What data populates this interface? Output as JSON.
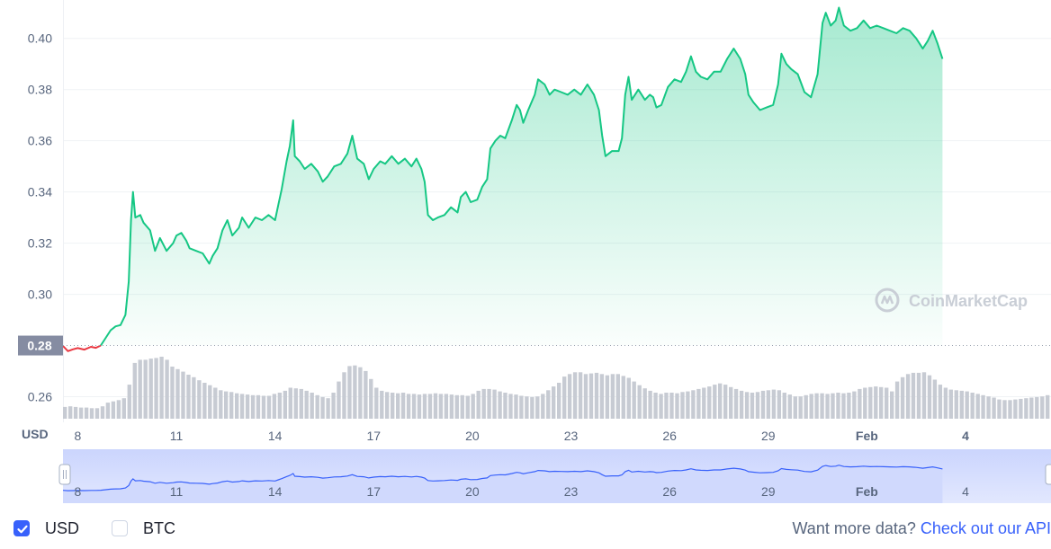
{
  "chart_data": {
    "type": "area",
    "currency_unit": "USD",
    "yticks": [
      "0.40",
      "0.38",
      "0.36",
      "0.34",
      "0.32",
      "0.30",
      "0.26"
    ],
    "ylim": [
      0.25,
      0.415
    ],
    "baseline_value": 0.28,
    "baseline_label": "0.28",
    "xticks": [
      {
        "label": "8",
        "day": 8,
        "bold": false
      },
      {
        "label": "11",
        "day": 11,
        "bold": false
      },
      {
        "label": "14",
        "day": 14,
        "bold": false
      },
      {
        "label": "17",
        "day": 17,
        "bold": false
      },
      {
        "label": "20",
        "day": 20,
        "bold": false
      },
      {
        "label": "23",
        "day": 23,
        "bold": false
      },
      {
        "label": "26",
        "day": 26,
        "bold": false
      },
      {
        "label": "29",
        "day": 29,
        "bold": false
      },
      {
        "label": "Feb",
        "day": 32,
        "bold": true
      },
      {
        "label": "4",
        "day": 35,
        "bold": true
      }
    ],
    "xlim": [
      7.55,
      37.6
    ],
    "series": [
      {
        "values": [
          [
            7.55,
            0.2798
          ],
          [
            7.7,
            0.2778
          ],
          [
            7.85,
            0.2785
          ],
          [
            8.0,
            0.279
          ],
          [
            8.2,
            0.2784
          ],
          [
            8.4,
            0.2795
          ],
          [
            8.55,
            0.2791
          ],
          [
            8.7,
            0.28
          ],
          [
            8.85,
            0.283
          ],
          [
            9.0,
            0.286
          ],
          [
            9.15,
            0.2875
          ],
          [
            9.3,
            0.288
          ],
          [
            9.45,
            0.292
          ],
          [
            9.55,
            0.305
          ],
          [
            9.62,
            0.329
          ],
          [
            9.68,
            0.34
          ],
          [
            9.75,
            0.33
          ],
          [
            9.9,
            0.331
          ],
          [
            10.0,
            0.328
          ],
          [
            10.2,
            0.325
          ],
          [
            10.35,
            0.317
          ],
          [
            10.5,
            0.322
          ],
          [
            10.7,
            0.317
          ],
          [
            10.9,
            0.32
          ],
          [
            11.0,
            0.323
          ],
          [
            11.15,
            0.324
          ],
          [
            11.3,
            0.321
          ],
          [
            11.4,
            0.318
          ],
          [
            11.6,
            0.317
          ],
          [
            11.8,
            0.316
          ],
          [
            12.0,
            0.312
          ],
          [
            12.1,
            0.315
          ],
          [
            12.25,
            0.318
          ],
          [
            12.4,
            0.325
          ],
          [
            12.55,
            0.329
          ],
          [
            12.7,
            0.323
          ],
          [
            12.9,
            0.326
          ],
          [
            13.0,
            0.33
          ],
          [
            13.2,
            0.326
          ],
          [
            13.4,
            0.33
          ],
          [
            13.6,
            0.329
          ],
          [
            13.8,
            0.331
          ],
          [
            14.0,
            0.329
          ],
          [
            14.1,
            0.335
          ],
          [
            14.2,
            0.341
          ],
          [
            14.35,
            0.352
          ],
          [
            14.45,
            0.358
          ],
          [
            14.55,
            0.368
          ],
          [
            14.6,
            0.354
          ],
          [
            14.75,
            0.352
          ],
          [
            14.9,
            0.349
          ],
          [
            15.1,
            0.351
          ],
          [
            15.3,
            0.348
          ],
          [
            15.45,
            0.344
          ],
          [
            15.6,
            0.346
          ],
          [
            15.8,
            0.35
          ],
          [
            16.0,
            0.351
          ],
          [
            16.2,
            0.355
          ],
          [
            16.35,
            0.362
          ],
          [
            16.5,
            0.353
          ],
          [
            16.7,
            0.351
          ],
          [
            16.85,
            0.345
          ],
          [
            17.0,
            0.349
          ],
          [
            17.2,
            0.352
          ],
          [
            17.35,
            0.351
          ],
          [
            17.55,
            0.354
          ],
          [
            17.75,
            0.351
          ],
          [
            17.95,
            0.353
          ],
          [
            18.15,
            0.35
          ],
          [
            18.3,
            0.353
          ],
          [
            18.45,
            0.349
          ],
          [
            18.55,
            0.344
          ],
          [
            18.65,
            0.331
          ],
          [
            18.8,
            0.329
          ],
          [
            18.95,
            0.33
          ],
          [
            19.15,
            0.331
          ],
          [
            19.35,
            0.334
          ],
          [
            19.55,
            0.332
          ],
          [
            19.65,
            0.338
          ],
          [
            19.8,
            0.34
          ],
          [
            19.95,
            0.336
          ],
          [
            20.15,
            0.337
          ],
          [
            20.3,
            0.342
          ],
          [
            20.45,
            0.345
          ],
          [
            20.55,
            0.357
          ],
          [
            20.7,
            0.36
          ],
          [
            20.85,
            0.362
          ],
          [
            21.0,
            0.361
          ],
          [
            21.2,
            0.368
          ],
          [
            21.35,
            0.374
          ],
          [
            21.45,
            0.372
          ],
          [
            21.55,
            0.367
          ],
          [
            21.7,
            0.372
          ],
          [
            21.9,
            0.378
          ],
          [
            22.0,
            0.384
          ],
          [
            22.2,
            0.382
          ],
          [
            22.35,
            0.378
          ],
          [
            22.5,
            0.38
          ],
          [
            22.7,
            0.379
          ],
          [
            22.9,
            0.378
          ],
          [
            23.1,
            0.38
          ],
          [
            23.3,
            0.378
          ],
          [
            23.5,
            0.382
          ],
          [
            23.7,
            0.378
          ],
          [
            23.85,
            0.372
          ],
          [
            23.95,
            0.362
          ],
          [
            24.05,
            0.354
          ],
          [
            24.25,
            0.356
          ],
          [
            24.45,
            0.356
          ],
          [
            24.55,
            0.361
          ],
          [
            24.65,
            0.378
          ],
          [
            24.75,
            0.385
          ],
          [
            24.85,
            0.376
          ],
          [
            25.05,
            0.38
          ],
          [
            25.25,
            0.376
          ],
          [
            25.4,
            0.378
          ],
          [
            25.5,
            0.377
          ],
          [
            25.6,
            0.373
          ],
          [
            25.75,
            0.374
          ],
          [
            25.95,
            0.381
          ],
          [
            26.15,
            0.384
          ],
          [
            26.35,
            0.383
          ],
          [
            26.5,
            0.387
          ],
          [
            26.65,
            0.393
          ],
          [
            26.8,
            0.387
          ],
          [
            26.95,
            0.385
          ],
          [
            27.15,
            0.384
          ],
          [
            27.35,
            0.387
          ],
          [
            27.55,
            0.387
          ],
          [
            27.75,
            0.392
          ],
          [
            27.95,
            0.396
          ],
          [
            28.15,
            0.392
          ],
          [
            28.3,
            0.386
          ],
          [
            28.4,
            0.378
          ],
          [
            28.55,
            0.375
          ],
          [
            28.75,
            0.372
          ],
          [
            28.95,
            0.373
          ],
          [
            29.15,
            0.374
          ],
          [
            29.3,
            0.382
          ],
          [
            29.4,
            0.394
          ],
          [
            29.55,
            0.39
          ],
          [
            29.7,
            0.388
          ],
          [
            29.9,
            0.386
          ],
          [
            30.1,
            0.379
          ],
          [
            30.3,
            0.377
          ],
          [
            30.5,
            0.386
          ],
          [
            30.65,
            0.406
          ],
          [
            30.75,
            0.41
          ],
          [
            30.9,
            0.405
          ],
          [
            31.05,
            0.407
          ],
          [
            31.15,
            0.412
          ],
          [
            31.3,
            0.405
          ],
          [
            31.5,
            0.403
          ],
          [
            31.7,
            0.404
          ],
          [
            31.9,
            0.407
          ],
          [
            32.1,
            0.404
          ],
          [
            32.3,
            0.405
          ],
          [
            32.5,
            0.404
          ],
          [
            32.7,
            0.403
          ],
          [
            32.9,
            0.402
          ],
          [
            33.1,
            0.404
          ],
          [
            33.3,
            0.403
          ],
          [
            33.5,
            0.4
          ],
          [
            33.7,
            0.396
          ],
          [
            33.85,
            0.399
          ],
          [
            34.0,
            0.403
          ],
          [
            34.15,
            0.398
          ],
          [
            34.3,
            0.392
          ]
        ]
      }
    ],
    "volume": [
      0.19,
      0.2,
      0.19,
      0.18,
      0.18,
      0.17,
      0.17,
      0.2,
      0.26,
      0.28,
      0.3,
      0.33,
      0.55,
      0.9,
      0.95,
      0.95,
      0.97,
      0.98,
      1.0,
      0.95,
      0.84,
      0.8,
      0.76,
      0.71,
      0.67,
      0.62,
      0.58,
      0.54,
      0.5,
      0.46,
      0.44,
      0.43,
      0.41,
      0.4,
      0.39,
      0.38,
      0.38,
      0.37,
      0.37,
      0.4,
      0.42,
      0.45,
      0.5,
      0.49,
      0.48,
      0.45,
      0.42,
      0.38,
      0.35,
      0.33,
      0.42,
      0.6,
      0.75,
      0.85,
      0.86,
      0.83,
      0.77,
      0.64,
      0.5,
      0.45,
      0.43,
      0.42,
      0.41,
      0.42,
      0.4,
      0.4,
      0.39,
      0.4,
      0.4,
      0.41,
      0.4,
      0.4,
      0.39,
      0.38,
      0.38,
      0.37,
      0.4,
      0.45,
      0.48,
      0.48,
      0.47,
      0.44,
      0.42,
      0.4,
      0.39,
      0.37,
      0.36,
      0.35,
      0.36,
      0.4,
      0.46,
      0.52,
      0.58,
      0.68,
      0.72,
      0.75,
      0.75,
      0.72,
      0.73,
      0.74,
      0.72,
      0.7,
      0.72,
      0.72,
      0.69,
      0.66,
      0.6,
      0.54,
      0.49,
      0.45,
      0.42,
      0.4,
      0.42,
      0.42,
      0.41,
      0.43,
      0.44,
      0.46,
      0.48,
      0.5,
      0.52,
      0.55,
      0.57,
      0.55,
      0.51,
      0.48,
      0.45,
      0.43,
      0.42,
      0.43,
      0.45,
      0.46,
      0.47,
      0.46,
      0.42,
      0.39,
      0.36,
      0.36,
      0.38,
      0.4,
      0.41,
      0.41,
      0.4,
      0.41,
      0.42,
      0.41,
      0.42,
      0.44,
      0.48,
      0.5,
      0.51,
      0.52,
      0.51,
      0.5,
      0.44,
      0.6,
      0.67,
      0.72,
      0.74,
      0.74,
      0.75,
      0.7,
      0.63,
      0.55,
      0.5,
      0.47,
      0.46,
      0.45,
      0.44,
      0.42,
      0.4,
      0.38,
      0.36,
      0.34,
      0.31,
      0.3,
      0.3,
      0.31,
      0.32,
      0.33,
      0.34,
      0.35,
      0.36,
      0.38
    ],
    "watermark": "CoinMarketCap"
  },
  "navigator": {
    "xticks": [
      {
        "label": "8",
        "day": 8,
        "bold": false
      },
      {
        "label": "11",
        "day": 11,
        "bold": false
      },
      {
        "label": "14",
        "day": 14,
        "bold": false
      },
      {
        "label": "17",
        "day": 17,
        "bold": false
      },
      {
        "label": "20",
        "day": 20,
        "bold": false
      },
      {
        "label": "23",
        "day": 23,
        "bold": false
      },
      {
        "label": "26",
        "day": 26,
        "bold": false
      },
      {
        "label": "29",
        "day": 29,
        "bold": false
      },
      {
        "label": "Feb",
        "day": 32,
        "bold": true
      },
      {
        "label": "4",
        "day": 35,
        "bold": false
      }
    ]
  },
  "footer": {
    "usd_label": "USD",
    "usd_checked": true,
    "btc_label": "BTC",
    "btc_checked": false,
    "api_prefix": "Want more data?",
    "api_link": "Check out our API"
  },
  "colors": {
    "line": "#16c784",
    "line_below": "#ea3943",
    "accent": "#3861fb",
    "nav_line": "#3861fb",
    "nav_fill": "#d5ddfe"
  }
}
